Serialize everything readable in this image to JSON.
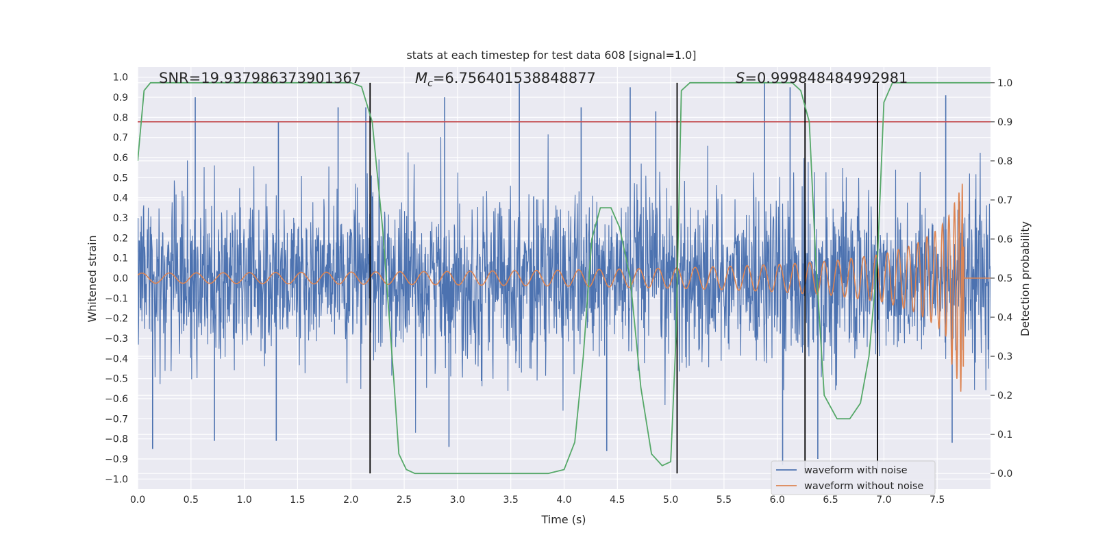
{
  "chart_data": {
    "type": "line",
    "title": "stats at each timestep for test data 608 [signal=1.0]",
    "xlabel": "Time (s)",
    "ylabel_left": "Whitened strain",
    "ylabel_right": "Detection probability",
    "xlim": [
      0.0,
      8.0
    ],
    "ylim_left": [
      -1.05,
      1.05
    ],
    "ylim_right": [
      -0.04,
      1.04
    ],
    "x_ticks": [
      "0.0",
      "0.5",
      "1.0",
      "1.5",
      "2.0",
      "2.5",
      "3.0",
      "3.5",
      "4.0",
      "4.5",
      "5.0",
      "5.5",
      "6.0",
      "6.5",
      "7.0",
      "7.5"
    ],
    "y_ticks_left": [
      "1.0",
      "0.9",
      "0.8",
      "0.7",
      "0.6",
      "0.5",
      "0.4",
      "0.3",
      "0.2",
      "0.1",
      "0.0",
      "−0.1",
      "−0.2",
      "−0.3",
      "−0.4",
      "−0.5",
      "−0.6",
      "−0.7",
      "−0.8",
      "−0.9",
      "−1.0"
    ],
    "y_ticks_right": [
      "1.0",
      "0.9",
      "0.8",
      "0.7",
      "0.6",
      "0.5",
      "0.4",
      "0.3",
      "0.2",
      "0.1",
      "0.0"
    ],
    "grid": true,
    "legend_position": "lower-right",
    "annotations": {
      "snr": "SNR=19.937986373901367",
      "mc_symbol": "M",
      "mc_sub": "c",
      "mc_value": "=6.756401538848877",
      "s_symbol": "S",
      "s_value": "=0.999848484992981"
    },
    "series": [
      {
        "name": "waveform with noise",
        "axis": "left",
        "color": "#4c72b0",
        "peaks_top": [
          [
            0.54,
            0.9
          ],
          [
            1.32,
            0.78
          ],
          [
            1.88,
            0.85
          ],
          [
            2.14,
            0.85
          ],
          [
            2.88,
            0.9
          ],
          [
            3.58,
            0.97
          ],
          [
            4.16,
            0.85
          ],
          [
            4.62,
            0.95
          ],
          [
            4.86,
            0.83
          ],
          [
            5.88,
            0.97
          ],
          [
            6.12,
            0.95
          ],
          [
            7.58,
            0.91
          ]
        ],
        "peaks_bottom": [
          [
            0.14,
            -0.85
          ],
          [
            0.72,
            -0.81
          ],
          [
            1.3,
            -0.81
          ],
          [
            2.92,
            -0.84
          ],
          [
            4.4,
            -0.86
          ],
          [
            6.05,
            -0.93
          ],
          [
            6.38,
            -0.9
          ],
          [
            7.64,
            -0.82
          ]
        ]
      },
      {
        "name": "waveform without noise",
        "axis": "left",
        "color": "#dd8452",
        "envelope": [
          [
            0.0,
            0.025
          ],
          [
            1.0,
            0.027
          ],
          [
            2.0,
            0.03
          ],
          [
            3.0,
            0.034
          ],
          [
            4.0,
            0.04
          ],
          [
            5.0,
            0.05
          ],
          [
            5.5,
            0.058
          ],
          [
            6.0,
            0.068
          ],
          [
            6.5,
            0.085
          ],
          [
            7.0,
            0.12
          ],
          [
            7.3,
            0.17
          ],
          [
            7.5,
            0.24
          ],
          [
            7.6,
            0.3
          ],
          [
            7.7,
            0.42
          ],
          [
            7.74,
            0.48
          ],
          [
            7.76,
            0.0
          ],
          [
            8.0,
            0.0
          ]
        ],
        "negative_min": -0.6
      },
      {
        "name": "detection probability",
        "axis": "right",
        "color": "#55a868",
        "points": [
          [
            0.0,
            0.8
          ],
          [
            0.06,
            0.98
          ],
          [
            0.12,
            1.0
          ],
          [
            2.0,
            1.0
          ],
          [
            2.1,
            0.99
          ],
          [
            2.2,
            0.9
          ],
          [
            2.3,
            0.62
          ],
          [
            2.4,
            0.25
          ],
          [
            2.45,
            0.05
          ],
          [
            2.52,
            0.01
          ],
          [
            2.6,
            0.0
          ],
          [
            3.85,
            0.0
          ],
          [
            4.0,
            0.01
          ],
          [
            4.1,
            0.08
          ],
          [
            4.18,
            0.3
          ],
          [
            4.26,
            0.6
          ],
          [
            4.34,
            0.68
          ],
          [
            4.44,
            0.68
          ],
          [
            4.52,
            0.63
          ],
          [
            4.62,
            0.5
          ],
          [
            4.72,
            0.22
          ],
          [
            4.82,
            0.05
          ],
          [
            4.92,
            0.02
          ],
          [
            5.0,
            0.03
          ],
          [
            5.05,
            0.35
          ],
          [
            5.1,
            0.98
          ],
          [
            5.18,
            1.0
          ],
          [
            6.14,
            1.0
          ],
          [
            6.22,
            0.98
          ],
          [
            6.3,
            0.9
          ],
          [
            6.36,
            0.55
          ],
          [
            6.44,
            0.2
          ],
          [
            6.56,
            0.14
          ],
          [
            6.68,
            0.14
          ],
          [
            6.78,
            0.18
          ],
          [
            6.86,
            0.3
          ],
          [
            6.94,
            0.55
          ],
          [
            7.0,
            0.95
          ],
          [
            7.08,
            1.0
          ],
          [
            8.0,
            1.0
          ]
        ]
      },
      {
        "name": "threshold",
        "axis": "right",
        "color": "#c44e52",
        "value": 0.9
      }
    ],
    "vertical_lines_x": [
      2.18,
      5.06,
      6.26,
      6.94
    ],
    "legend": [
      "waveform with noise",
      "waveform without noise"
    ]
  }
}
